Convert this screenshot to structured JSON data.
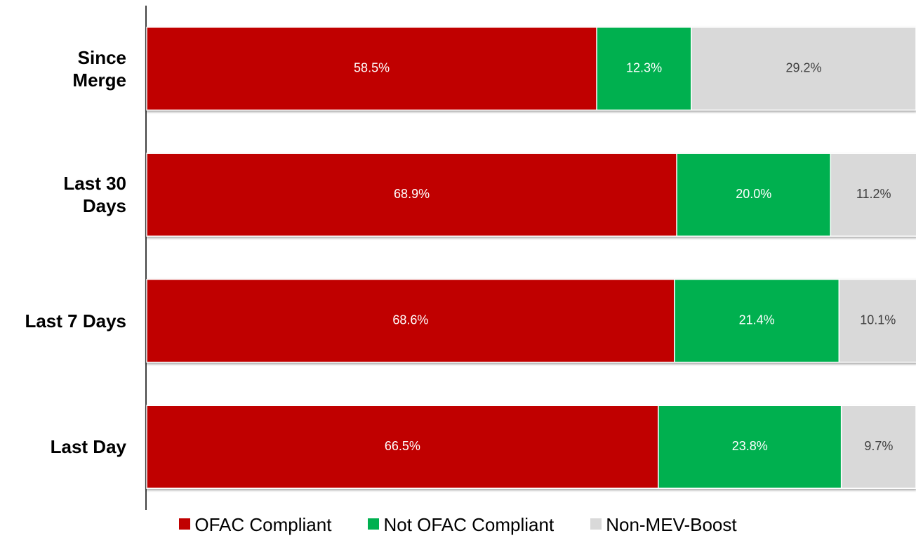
{
  "chart_data": {
    "type": "stacked_barh",
    "categories": [
      "Since Merge",
      "Last 30 Days",
      "Last 7 Days",
      "Last Day"
    ],
    "xlim": [
      0,
      100
    ],
    "series": [
      {
        "name": "OFAC Compliant",
        "color": "#c00000",
        "values": [
          58.5,
          68.9,
          68.6,
          66.5
        ],
        "value_labels": [
          "58.5%",
          "68.9%",
          "68.6%",
          "66.5%"
        ]
      },
      {
        "name": "Not OFAC Compliant",
        "color": "#00b050",
        "values": [
          12.3,
          20.0,
          21.4,
          23.8
        ],
        "value_labels": [
          "12.3%",
          "20.0%",
          "21.4%",
          "23.8%"
        ]
      },
      {
        "name": "Non-MEV-Boost",
        "color": "#d9d9d9",
        "values": [
          29.2,
          11.2,
          10.1,
          9.7
        ],
        "value_labels": [
          "29.2%",
          "11.2%",
          "10.1%",
          "9.7%"
        ]
      }
    ],
    "legend": "bottom"
  }
}
